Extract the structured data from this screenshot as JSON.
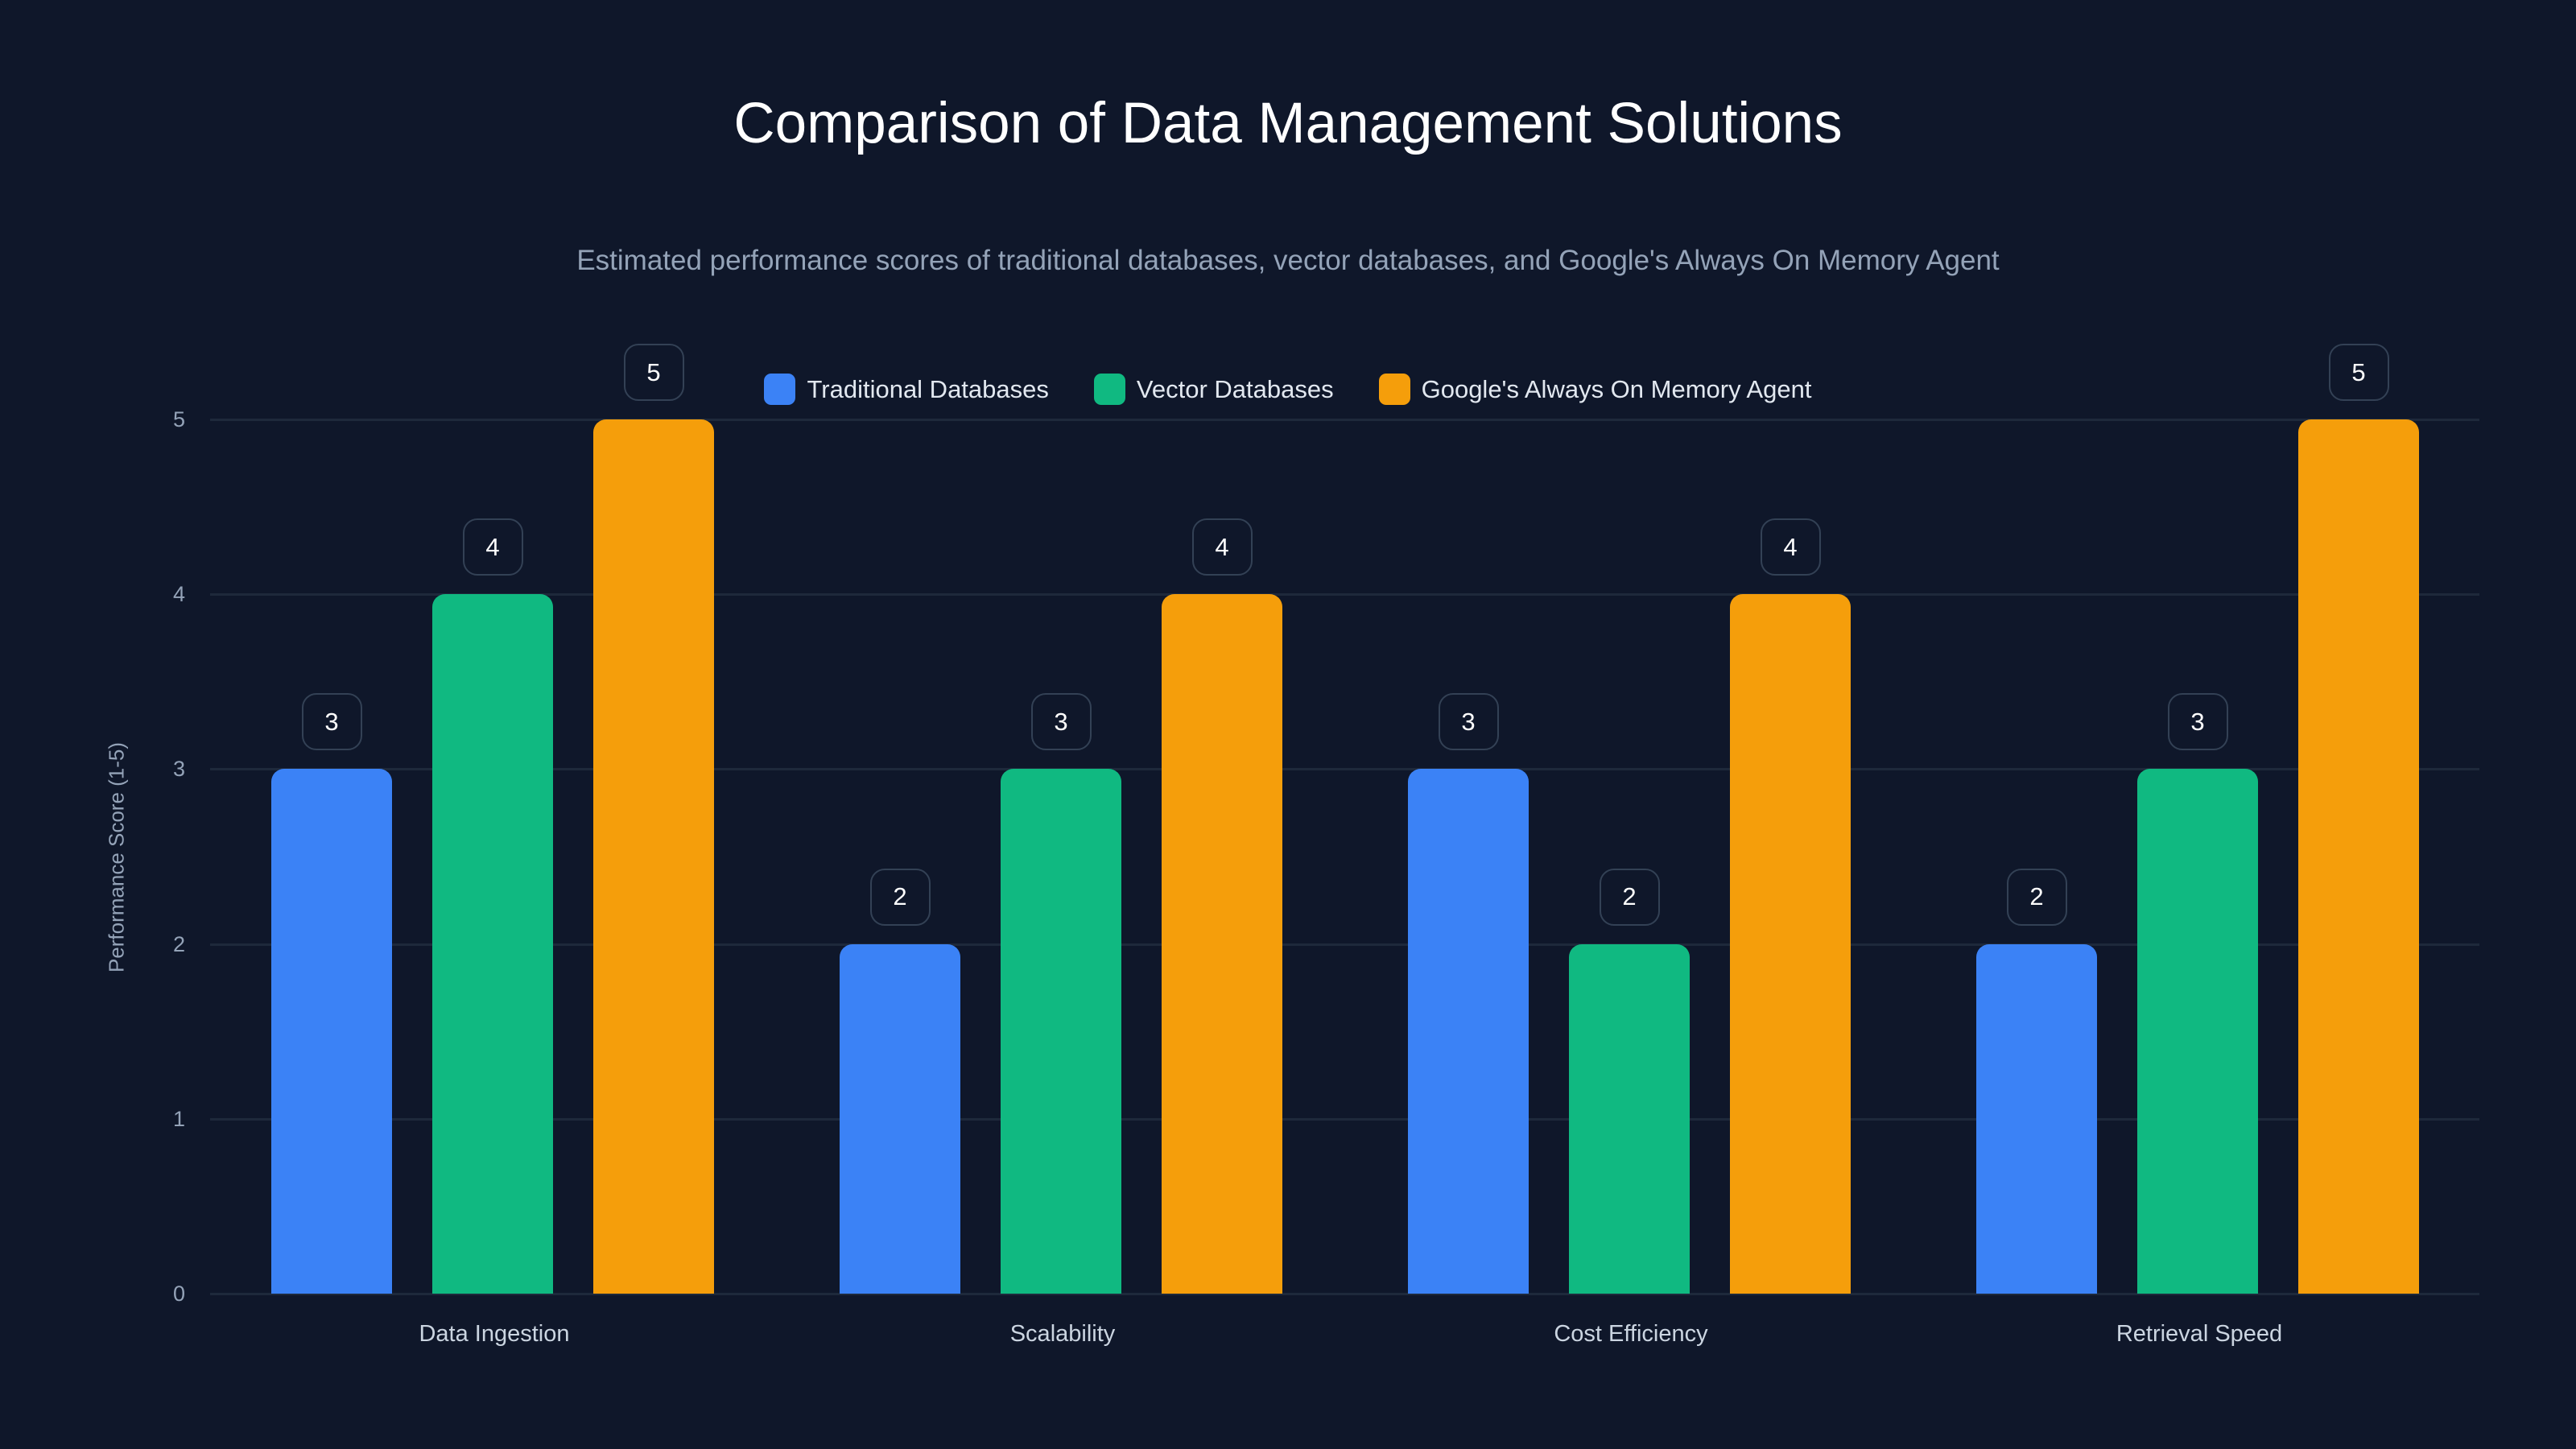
{
  "chart_data": {
    "type": "bar",
    "title": "Comparison of Data Management Solutions",
    "subtitle": "Estimated performance scores of traditional databases, vector databases, and Google's Always On Memory Agent",
    "xlabel": "",
    "ylabel": "Performance Score (1-5)",
    "ylim": [
      0,
      5
    ],
    "yticks": [
      "0",
      "1",
      "2",
      "3",
      "4",
      "5"
    ],
    "grid": true,
    "legend_position": "top",
    "categories": [
      "Data Ingestion",
      "Scalability",
      "Cost Efficiency",
      "Retrieval Speed"
    ],
    "series": [
      {
        "name": "Traditional Databases",
        "color": "#3b82f6",
        "values": [
          3,
          2,
          3,
          2
        ]
      },
      {
        "name": "Vector Databases",
        "color": "#10b981",
        "values": [
          4,
          3,
          2,
          3
        ]
      },
      {
        "name": "Google's Always On Memory Agent",
        "color": "#f59e0b",
        "values": [
          5,
          4,
          4,
          5
        ]
      }
    ]
  },
  "colors": {
    "background": "#0f172a",
    "gridline": "#1e293b",
    "label_border": "#334155"
  }
}
